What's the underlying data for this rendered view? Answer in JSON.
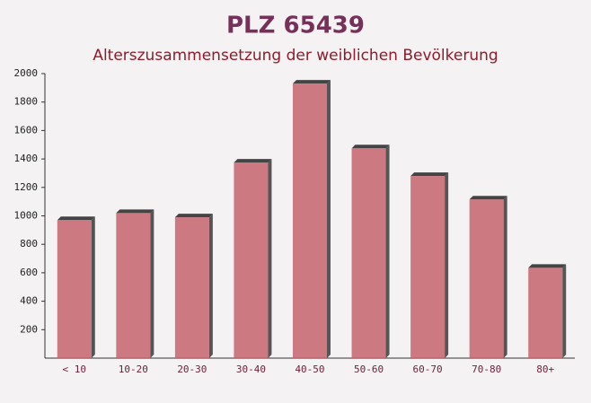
{
  "chart_data": {
    "type": "bar",
    "title": "PLZ 65439",
    "subtitle": "Alterszusammensetzung der weiblichen Bevölkerung",
    "categories": [
      "< 10",
      "10-20",
      "20-30",
      "30-40",
      "40-50",
      "50-60",
      "60-70",
      "70-80",
      "80+"
    ],
    "values": [
      970,
      1020,
      990,
      1375,
      1930,
      1475,
      1280,
      1115,
      635
    ],
    "color": "#c4646e",
    "ylim": [
      0,
      2000
    ],
    "yticks": [
      200,
      400,
      600,
      800,
      1000,
      1200,
      1400,
      1600,
      1800,
      2000
    ]
  }
}
